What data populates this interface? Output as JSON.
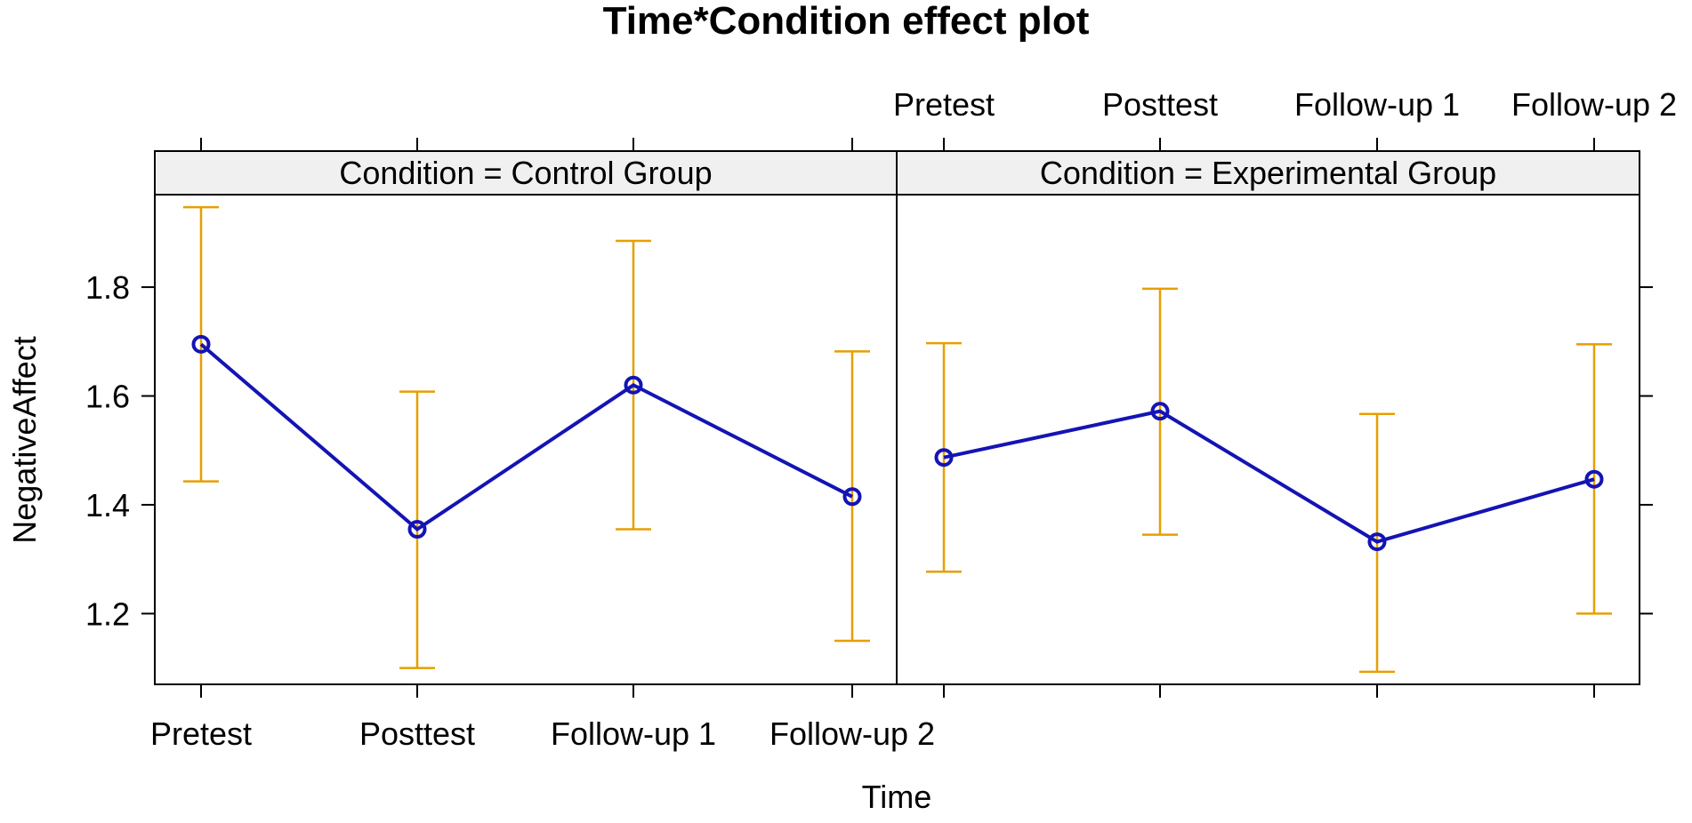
{
  "chart_data": {
    "type": "line",
    "title": "Time*Condition effect plot",
    "xlabel": "Time",
    "ylabel": "NegativeAffect",
    "categories": [
      "Pretest",
      "Posttest",
      "Follow-up 1",
      "Follow-up 2"
    ],
    "ylim": [
      1.07,
      1.97
    ],
    "yticks": [
      1.2,
      1.4,
      1.6,
      1.8
    ],
    "ytick_labels": [
      "1.2",
      "1.4",
      "1.6",
      "1.8"
    ],
    "panels": [
      {
        "strip": "Condition = Control Group",
        "values": [
          1.695,
          1.355,
          1.62,
          1.415
        ],
        "lower": [
          1.443,
          1.1,
          1.355,
          1.15
        ],
        "upper": [
          1.947,
          1.608,
          1.885,
          1.682
        ]
      },
      {
        "strip": "Condition = Experimental Group",
        "values": [
          1.487,
          1.572,
          1.332,
          1.447
        ],
        "lower": [
          1.277,
          1.345,
          1.093,
          1.2
        ],
        "upper": [
          1.697,
          1.797,
          1.567,
          1.695
        ]
      }
    ],
    "colors": {
      "line": "#1414b4",
      "error_bars": "#e69f00",
      "strip_bg": "#f0f0f0"
    }
  }
}
